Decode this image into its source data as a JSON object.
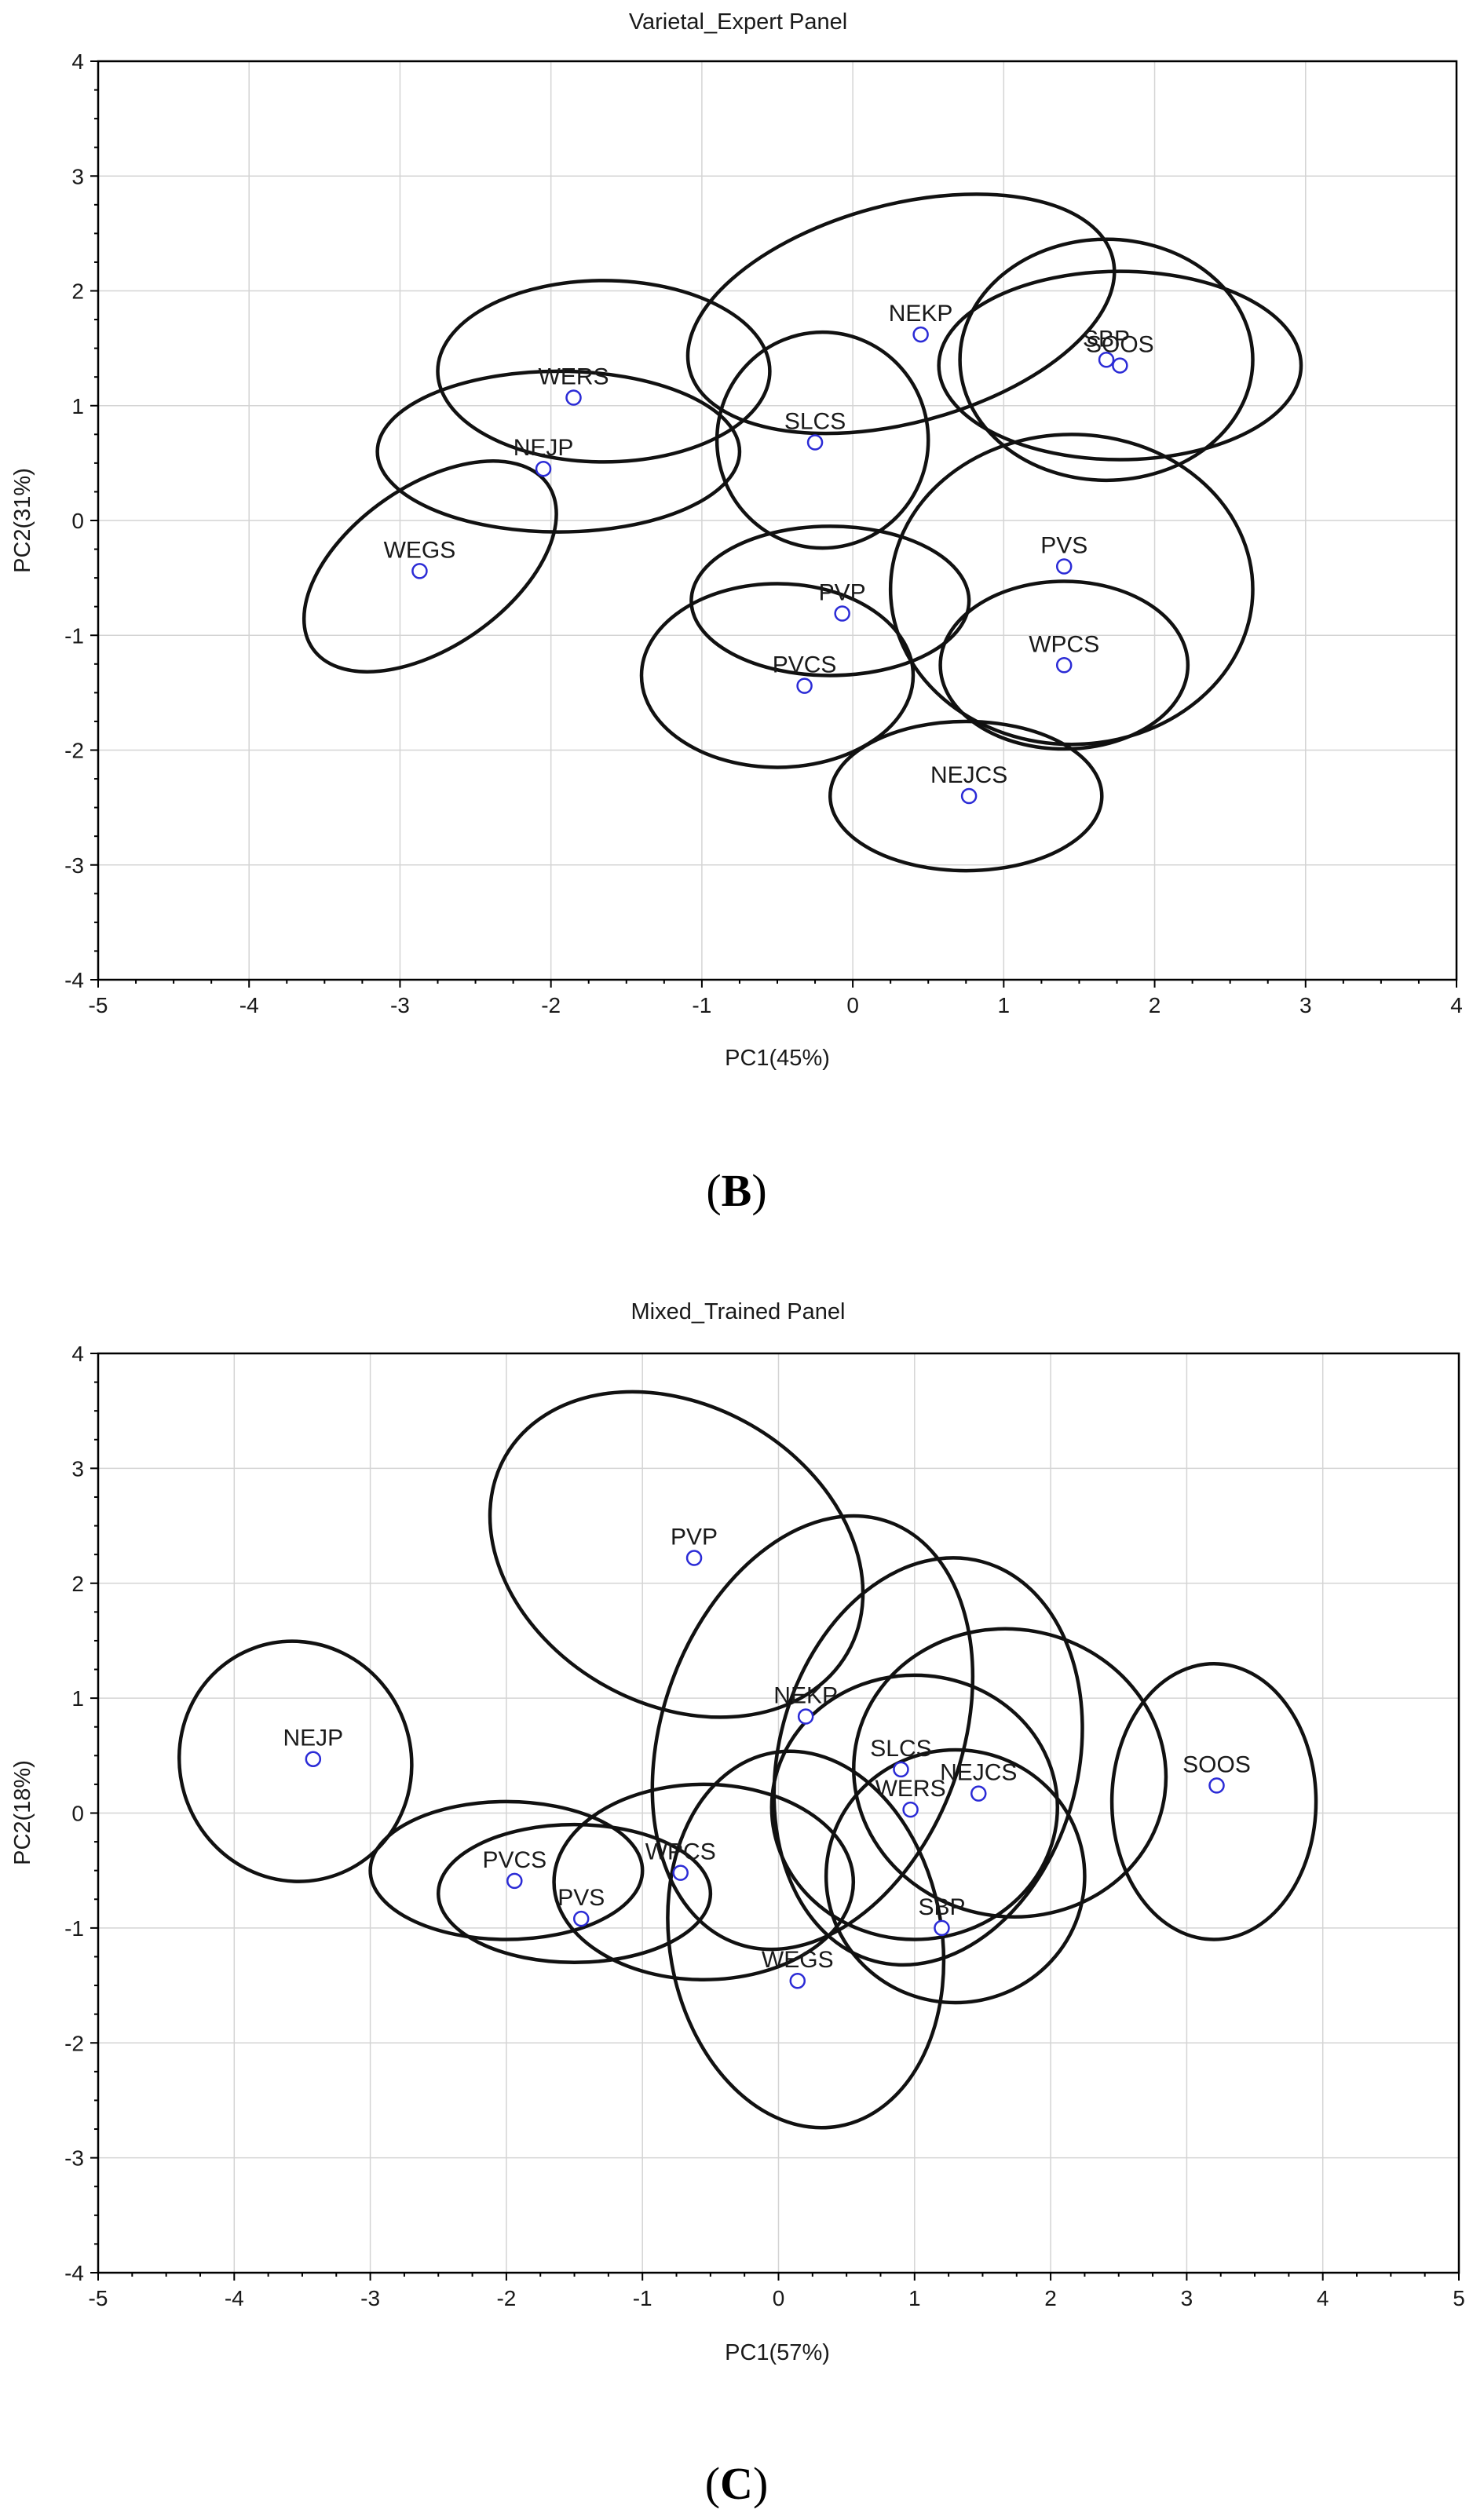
{
  "figure": {
    "panels": [
      {
        "caption_open": "(",
        "caption_letter": "B",
        "caption_close": ")"
      },
      {
        "caption_open": "(",
        "caption_letter": "C",
        "caption_close": ")"
      }
    ]
  },
  "chart_data": [
    {
      "type": "scatter",
      "title": "Varietal_Expert Panel",
      "xlabel": "PC1(45%)",
      "ylabel": "PC2(31%)",
      "xlim": [
        -5,
        4
      ],
      "ylim": [
        -4,
        4
      ],
      "xticks": [
        -5,
        -4,
        -3,
        -2,
        -1,
        0,
        1,
        2,
        3,
        4
      ],
      "yticks": [
        -4,
        -3,
        -2,
        -1,
        0,
        1,
        2,
        3,
        4
      ],
      "grid": true,
      "points": [
        {
          "label": "NEKP",
          "x": 0.45,
          "y": 1.62
        },
        {
          "label": "SBP",
          "x": 1.68,
          "y": 1.4
        },
        {
          "label": "SOOS",
          "x": 1.77,
          "y": 1.35
        },
        {
          "label": "WERS",
          "x": -1.85,
          "y": 1.07
        },
        {
          "label": "SLCS",
          "x": -0.25,
          "y": 0.68
        },
        {
          "label": "NEJP",
          "x": -2.05,
          "y": 0.45
        },
        {
          "label": "WEGS",
          "x": -2.87,
          "y": -0.44
        },
        {
          "label": "PVS",
          "x": 1.4,
          "y": -0.4
        },
        {
          "label": "PVP",
          "x": -0.07,
          "y": -0.81
        },
        {
          "label": "WPCS",
          "x": 1.4,
          "y": -1.26
        },
        {
          "label": "PVCS",
          "x": -0.32,
          "y": -1.44
        },
        {
          "label": "NEJCS",
          "x": 0.77,
          "y": -2.4
        }
      ],
      "ellipses": [
        {
          "label": "NEKP",
          "cx": 0.32,
          "cy": 1.8,
          "rx": 1.45,
          "ry": 0.95,
          "angle": -15
        },
        {
          "label": "SBP",
          "cx": 1.68,
          "cy": 1.4,
          "rx": 0.97,
          "ry": 1.05,
          "angle": 0
        },
        {
          "label": "SOOS",
          "cx": 1.77,
          "cy": 1.35,
          "rx": 1.2,
          "ry": 0.82,
          "angle": 0
        },
        {
          "label": "WERS",
          "cx": -1.65,
          "cy": 1.3,
          "rx": 1.1,
          "ry": 0.79,
          "angle": 0
        },
        {
          "label": "SLCS",
          "cx": -0.2,
          "cy": 0.7,
          "rx": 0.7,
          "ry": 0.94,
          "angle": 0
        },
        {
          "label": "NEJP",
          "cx": -1.95,
          "cy": 0.6,
          "rx": 1.2,
          "ry": 0.7,
          "angle": 0
        },
        {
          "label": "WEGS",
          "cx": -2.8,
          "cy": -0.4,
          "rx": 0.95,
          "ry": 0.7,
          "angle": -35
        },
        {
          "label": "PVS",
          "cx": 1.45,
          "cy": -0.6,
          "rx": 1.2,
          "ry": 1.35,
          "angle": 0
        },
        {
          "label": "PVP",
          "cx": -0.15,
          "cy": -0.7,
          "rx": 0.92,
          "ry": 0.65,
          "angle": 0
        },
        {
          "label": "WPCS",
          "cx": 1.4,
          "cy": -1.26,
          "rx": 0.82,
          "ry": 0.73,
          "angle": 0
        },
        {
          "label": "PVCS",
          "cx": -0.5,
          "cy": -1.35,
          "rx": 0.9,
          "ry": 0.8,
          "angle": 0
        },
        {
          "label": "NEJCS",
          "cx": 0.75,
          "cy": -2.4,
          "rx": 0.9,
          "ry": 0.65,
          "angle": 0
        }
      ]
    },
    {
      "type": "scatter",
      "title": "Mixed_Trained Panel",
      "xlabel": "PC1(57%)",
      "ylabel": "PC2(18%)",
      "xlim": [
        -5,
        5
      ],
      "ylim": [
        -4,
        4
      ],
      "xticks": [
        -5,
        -4,
        -3,
        -2,
        -1,
        0,
        1,
        2,
        3,
        4,
        5
      ],
      "yticks": [
        -4,
        -3,
        -2,
        -1,
        0,
        1,
        2,
        3,
        4
      ],
      "grid": true,
      "points": [
        {
          "label": "PVP",
          "x": -0.62,
          "y": 2.22
        },
        {
          "label": "NEKP",
          "x": 0.2,
          "y": 0.84
        },
        {
          "label": "NEJP",
          "x": -3.42,
          "y": 0.47
        },
        {
          "label": "SLCS",
          "x": 0.9,
          "y": 0.38
        },
        {
          "label": "SOOS",
          "x": 3.22,
          "y": 0.24
        },
        {
          "label": "NEJCS",
          "x": 1.47,
          "y": 0.17
        },
        {
          "label": "WERS",
          "x": 0.97,
          "y": 0.03
        },
        {
          "label": "WPCS",
          "x": -0.72,
          "y": -0.52
        },
        {
          "label": "PVCS",
          "x": -1.94,
          "y": -0.59
        },
        {
          "label": "PVS",
          "x": -1.45,
          "y": -0.92
        },
        {
          "label": "SBP",
          "x": 1.2,
          "y": -1.0
        },
        {
          "label": "WEGS",
          "x": 0.14,
          "y": -1.46
        }
      ],
      "ellipses": [
        {
          "label": "PVP",
          "cx": -0.75,
          "cy": 2.25,
          "rx": 1.45,
          "ry": 1.3,
          "angle": 30
        },
        {
          "label": "NEKP",
          "cx": 0.25,
          "cy": 0.7,
          "rx": 1.1,
          "ry": 1.95,
          "angle": 20
        },
        {
          "label": "NEJP",
          "cx": -3.55,
          "cy": 0.45,
          "rx": 0.85,
          "ry": 1.05,
          "angle": -20
        },
        {
          "label": "SLCS",
          "cx": 1.1,
          "cy": 0.45,
          "rx": 1.1,
          "ry": 1.8,
          "angle": 15
        },
        {
          "label": "SOOS",
          "cx": 3.2,
          "cy": 0.1,
          "rx": 0.75,
          "ry": 1.2,
          "angle": 0
        },
        {
          "label": "NEJCS",
          "cx": 1.7,
          "cy": 0.35,
          "rx": 1.15,
          "ry": 1.25,
          "angle": 10
        },
        {
          "label": "WERS",
          "cx": 1.0,
          "cy": 0.05,
          "rx": 1.05,
          "ry": 1.15,
          "angle": 0
        },
        {
          "label": "WPCS",
          "cx": -0.55,
          "cy": -0.6,
          "rx": 1.1,
          "ry": 0.85,
          "angle": 0
        },
        {
          "label": "PVCS",
          "cx": -2.0,
          "cy": -0.5,
          "rx": 1.0,
          "ry": 0.6,
          "angle": 0
        },
        {
          "label": "PVS",
          "cx": -1.5,
          "cy": -0.7,
          "rx": 1.0,
          "ry": 0.6,
          "angle": 0
        },
        {
          "label": "SBP",
          "cx": 1.3,
          "cy": -0.55,
          "rx": 0.95,
          "ry": 1.1,
          "angle": 0
        },
        {
          "label": "WEGS",
          "cx": 0.2,
          "cy": -1.1,
          "rx": 1.0,
          "ry": 1.65,
          "angle": -10
        }
      ]
    }
  ]
}
